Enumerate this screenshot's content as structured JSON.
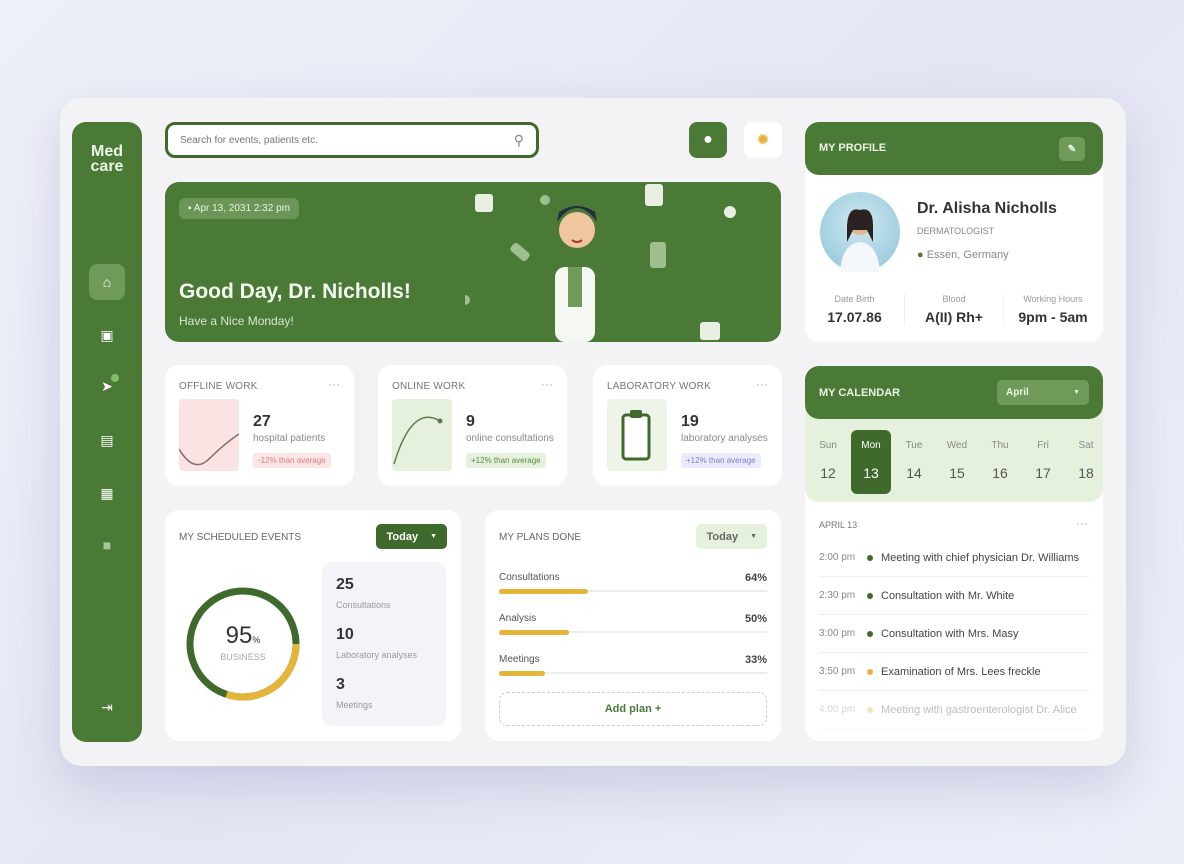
{
  "sidebar": {
    "logo": "Med\ncare",
    "items": [
      {
        "icon": "home-icon",
        "active": true
      },
      {
        "icon": "chat-icon"
      },
      {
        "icon": "send-icon",
        "badge": true
      },
      {
        "icon": "calendar-icon"
      },
      {
        "icon": "grid-icon"
      },
      {
        "icon": "document-icon"
      }
    ],
    "logout_icon": "logout-icon"
  },
  "search": {
    "placeholder": "Search for events, patients etc."
  },
  "banner": {
    "date": "Apr 13, 2031  2:32 pm",
    "greeting": "Good Day, Dr. Nicholls!",
    "subtitle": "Have a Nice Monday!"
  },
  "stats": [
    {
      "title": "OFFLINE WORK",
      "value": "27",
      "label": "hospital patients",
      "badge": "-12% than average",
      "color": "#f9e3e3",
      "badge_color": "#e07b7b"
    },
    {
      "title": "ONLINE WORK",
      "value": "9",
      "label": "online consultations",
      "badge": "+12% than average",
      "color": "#e6f1dd",
      "badge_color": "#5c8a48"
    },
    {
      "title": "LABORATORY WORK",
      "value": "19",
      "label": "laboratory analyses",
      "badge": "+12% than average",
      "color": "#eef4e8",
      "badge_color": "#7a7fd6"
    }
  ],
  "scheduled": {
    "title": "MY SCHEDULED EVENTS",
    "filter": "Today",
    "percent": "95",
    "percent_unit": "%",
    "percent_label": "BUSINESS",
    "items": [
      {
        "value": "25",
        "label": "Consultations"
      },
      {
        "value": "10",
        "label": "Laboratory analyses"
      },
      {
        "value": "3",
        "label": "Meetings"
      }
    ]
  },
  "plans": {
    "title": "MY PLANS DONE",
    "filter": "Today",
    "items": [
      {
        "label": "Consultations",
        "value": "64%",
        "pct": 64
      },
      {
        "label": "Analysis",
        "value": "50%",
        "pct": 50
      },
      {
        "label": "Meetings",
        "value": "33%",
        "pct": 33
      }
    ],
    "add_label": "Add plan +"
  },
  "profile": {
    "title": "MY PROFILE",
    "name": "Dr. Alisha Nicholls",
    "role": "DERMATOLOGIST",
    "location": "Essen, Germany",
    "fields": [
      {
        "label": "Date Birth",
        "value": "17.07.86"
      },
      {
        "label": "Blood",
        "value": "A(II) Rh+"
      },
      {
        "label": "Working Hours",
        "value": "9pm - 5am"
      }
    ]
  },
  "calendar": {
    "title": "MY CALENDAR",
    "month": "April",
    "days": [
      {
        "d": "Sun",
        "n": "12"
      },
      {
        "d": "Mon",
        "n": "13",
        "active": true
      },
      {
        "d": "Tue",
        "n": "14"
      },
      {
        "d": "Wed",
        "n": "15"
      },
      {
        "d": "Thu",
        "n": "16"
      },
      {
        "d": "Fri",
        "n": "17"
      },
      {
        "d": "Sat",
        "n": "18"
      }
    ],
    "date_label": "APRIL 13",
    "events": [
      {
        "time": "2:00 pm",
        "text": "Meeting with chief physician Dr. Williams",
        "color": "#3f6a2c"
      },
      {
        "time": "2:30 pm",
        "text": "Consultation with Mr. White",
        "color": "#3f6a2c"
      },
      {
        "time": "3:00 pm",
        "text": "Consultation with Mrs. Masy",
        "color": "#3f6a2c"
      },
      {
        "time": "3:50 pm",
        "text": "Examination of Mrs. Lees freckle",
        "color": "#e5b53a"
      },
      {
        "time": "4:00 pm",
        "text": "Meeting with gastroenterologist Dr. Alice",
        "color": "#e5b53a"
      }
    ]
  },
  "colors": {
    "primary": "#4a7a35",
    "accent": "#e5b53a"
  }
}
